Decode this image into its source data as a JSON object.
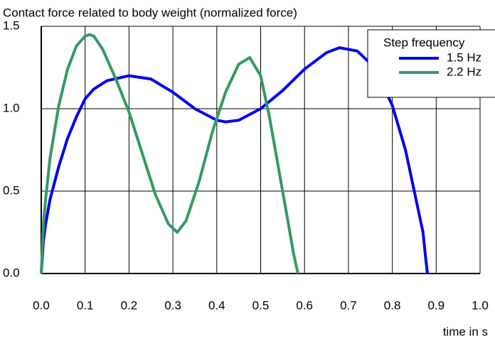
{
  "chart_data": {
    "type": "line",
    "title": "Contact force related to body weight (normalized force)",
    "xlabel": "time in s",
    "legend_title": "Step frequency",
    "legend": "upper right",
    "grid": true,
    "xlim": [
      0,
      1
    ],
    "ylim": [
      0,
      1.5
    ],
    "xticks": [
      {
        "value": 0,
        "label": "0.0"
      },
      0.1,
      0.2,
      0.3,
      0.4,
      0.5,
      0.6,
      0.7,
      0.8,
      0.9,
      {
        "value": 1,
        "label": "1.0"
      }
    ],
    "yticks": [
      {
        "value": 0,
        "label": "0.0"
      },
      0.5,
      {
        "value": 1,
        "label": "1.0"
      },
      1.5
    ],
    "series": [
      {
        "name": "1.5 Hz",
        "color": "#0000ee",
        "x": [
          0,
          0.005,
          0.01,
          0.02,
          0.04,
          0.06,
          0.08,
          0.1,
          0.12,
          0.15,
          0.2,
          0.25,
          0.3,
          0.35,
          0.4,
          0.42,
          0.45,
          0.5,
          0.55,
          0.6,
          0.65,
          0.68,
          0.72,
          0.76,
          0.8,
          0.83,
          0.85,
          0.87,
          0.875,
          0.88
        ],
        "values": [
          0,
          0.2,
          0.3,
          0.45,
          0.65,
          0.82,
          0.95,
          1.06,
          1.12,
          1.17,
          1.2,
          1.18,
          1.1,
          1.0,
          0.93,
          0.92,
          0.93,
          1.0,
          1.11,
          1.24,
          1.34,
          1.37,
          1.35,
          1.25,
          1.02,
          0.75,
          0.5,
          0.25,
          0.12,
          0
        ]
      },
      {
        "name": "2.2 Hz",
        "color": "#339966",
        "x": [
          0,
          0.005,
          0.01,
          0.02,
          0.04,
          0.06,
          0.08,
          0.1,
          0.11,
          0.12,
          0.14,
          0.17,
          0.2,
          0.23,
          0.26,
          0.29,
          0.31,
          0.33,
          0.36,
          0.39,
          0.42,
          0.45,
          0.475,
          0.5,
          0.52,
          0.54,
          0.56,
          0.575,
          0.585
        ],
        "values": [
          0,
          0.3,
          0.45,
          0.7,
          1.02,
          1.24,
          1.38,
          1.44,
          1.45,
          1.44,
          1.36,
          1.18,
          0.98,
          0.73,
          0.48,
          0.3,
          0.25,
          0.32,
          0.56,
          0.86,
          1.1,
          1.27,
          1.31,
          1.2,
          0.95,
          0.65,
          0.35,
          0.12,
          0
        ]
      }
    ]
  }
}
